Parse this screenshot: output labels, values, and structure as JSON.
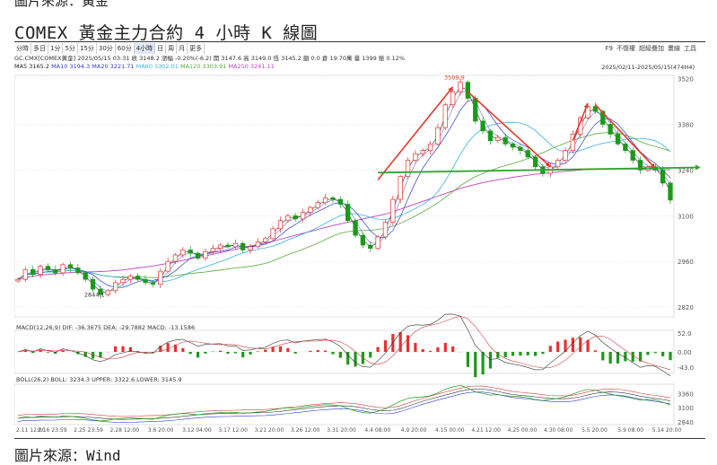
{
  "title": "COMEX 黃金主力合約 4 小時 K 線圖",
  "source": "圖片來源：Wind",
  "toolbar": {
    "periods": [
      "分時",
      "多日",
      "1分",
      "5分",
      "15分",
      "30分",
      "60分",
      "4小時",
      "日",
      "周",
      "月",
      "更多"
    ],
    "selected": "4小時",
    "right": [
      "F9",
      "不復權",
      "超級疊加",
      "畫線",
      "工具"
    ]
  },
  "quote": "GC.CMX[COMEX黃金]  2025/05/15 03:31  收 3148.2  漲幅 -0.20%(-6.2)  開 3147.6  高 3149.0  低 3145.2  額 0.0  倉 19.70萬  量 1399  振 0.12%",
  "ma_line": [
    {
      "label": "MA5 3165.2",
      "color": "#222222"
    },
    {
      "label": "MA10 3194.3",
      "color": "#2b3fcf"
    },
    {
      "label": "MA20 3221.71",
      "color": "#2b3fcf"
    },
    {
      "label": "MA60 3302.01",
      "color": "#36b3d9"
    },
    {
      "label": "MA120 3303.91",
      "color": "#5aaa3c"
    },
    {
      "label": "MA250 3241.11",
      "color": "#c040c0"
    }
  ],
  "date_range": "2025/02/11-2025/05/15(474H4)",
  "macd_line": "MACD(12,26,9)  DIF: -36.3675  DEA: -29.7882  MACD: -13.1586",
  "boll_line": "BOLL(26,2)  BOLL: 3234.3  UPPER: 3322.6  LOWER: 3145.9",
  "chart_data": {
    "type": "line",
    "x_ticks": [
      "2.11 12:00",
      "2.16 23:59",
      "2.25 23:59",
      "2.28 12:00",
      "3.6 20:00",
      "3.12 04:00",
      "3.17 12:00",
      "3.21 20:00",
      "3.26 12:00",
      "3.31 20:00",
      "4.4 08:00",
      "4.9 20:00",
      "4.15 00:00",
      "4.21 12:00",
      "4.25 00:00",
      "4.30 08:00",
      "5.5 20:00",
      "5.9 08:00",
      "5.14 20:00"
    ],
    "price_axis": {
      "ylim": [
        2790,
        3530
      ],
      "ticks": [
        3520,
        3380,
        3240,
        3100,
        2960,
        2820
      ]
    },
    "series": [
      {
        "name": "close",
        "values": [
          2905,
          2935,
          2920,
          2945,
          2935,
          2925,
          2950,
          2940,
          2925,
          2905,
          2875,
          2858,
          2870,
          2895,
          2905,
          2915,
          2905,
          2895,
          2890,
          2930,
          2960,
          2980,
          2995,
          2985,
          2970,
          2990,
          3000,
          3010,
          3005,
          3015,
          2995,
          3005,
          3020,
          3030,
          3060,
          3085,
          3100,
          3090,
          3110,
          3125,
          3140,
          3155,
          3150,
          3135,
          3085,
          3040,
          3010,
          3000,
          3035,
          3080,
          3150,
          3220,
          3270,
          3290,
          3300,
          3320,
          3370,
          3440,
          3480,
          3509,
          3460,
          3390,
          3360,
          3330,
          3340,
          3320,
          3310,
          3300,
          3280,
          3250,
          3230,
          3250,
          3270,
          3300,
          3350,
          3400,
          3435,
          3420,
          3380,
          3350,
          3320,
          3300,
          3270,
          3240,
          3250,
          3240,
          3200,
          3148
        ]
      },
      {
        "name": "MA250",
        "values": [
          2905,
          2910,
          2915,
          2918,
          2920,
          2922,
          2924,
          2926,
          2927,
          2928,
          2928,
          2929,
          2930,
          2932,
          2934,
          2937,
          2940,
          2943,
          2946,
          2950,
          2954,
          2958,
          2963,
          2968,
          2972,
          2977,
          2982,
          2987,
          2992,
          2997,
          3002,
          3007,
          3012,
          3017,
          3022,
          3028,
          3034,
          3040,
          3046,
          3052,
          3058,
          3064,
          3070,
          3075,
          3080,
          3085,
          3090,
          3095,
          3100,
          3105,
          3112,
          3120,
          3128,
          3136,
          3144,
          3152,
          3160,
          3168,
          3176,
          3184,
          3190,
          3196,
          3201,
          3206,
          3210,
          3214,
          3218,
          3221,
          3224,
          3227,
          3229,
          3232,
          3234,
          3236,
          3238,
          3240,
          3242,
          3243,
          3244,
          3244,
          3244,
          3243,
          3243,
          3242,
          3242,
          3241,
          3241,
          3241
        ]
      }
    ],
    "annotations": [
      {
        "label": "3509.9",
        "x_index": 59,
        "y": 3509.9
      },
      {
        "label": "2844.1",
        "x_index": 11,
        "y": 2844.1
      }
    ],
    "neckline_y": 3240,
    "macd": {
      "ticks": [
        52.0,
        0.0,
        -43.0
      ],
      "ylim": [
        -60,
        60
      ]
    },
    "boll": {
      "ticks": [
        3360,
        3100,
        2840
      ],
      "ylim": [
        2790,
        3530
      ]
    }
  }
}
